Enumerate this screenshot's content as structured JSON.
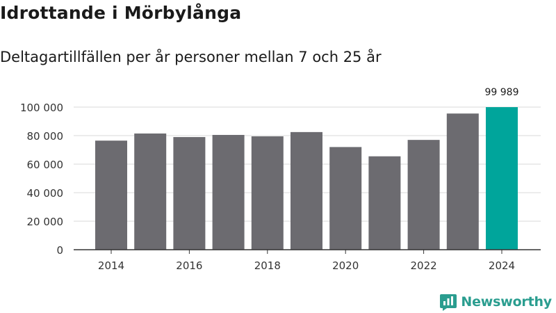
{
  "header": {
    "title": "Idrottande i Mörbylånga",
    "subtitle": "Deltagartillfällen per år personer mellan 7 och 25 år"
  },
  "brand": {
    "name": "Newsworthy"
  },
  "colors": {
    "bar": "#6c6b70",
    "highlight": "#00a59b",
    "grid": "#d9d9d9",
    "axis": "#333333",
    "brand": "#2a9d8f"
  },
  "chart_data": {
    "type": "bar",
    "x": [
      2014,
      2015,
      2016,
      2017,
      2018,
      2019,
      2020,
      2021,
      2022,
      2023,
      2024
    ],
    "values": [
      76500,
      81500,
      79000,
      80500,
      79500,
      82500,
      72000,
      65500,
      77000,
      95500,
      99989
    ],
    "highlight_index": 10,
    "data_labels": [
      {
        "index": 10,
        "text": "99 989"
      }
    ],
    "xticks": [
      "2014",
      "2016",
      "2018",
      "2020",
      "2022",
      "2024"
    ],
    "yticks": [
      {
        "value": 0,
        "label": "0"
      },
      {
        "value": 20000,
        "label": "20 000"
      },
      {
        "value": 40000,
        "label": "40 000"
      },
      {
        "value": 60000,
        "label": "60 000"
      },
      {
        "value": 80000,
        "label": "80 000"
      },
      {
        "value": 100000,
        "label": "100 000"
      }
    ],
    "ylim": [
      0,
      100000
    ],
    "grid": true,
    "legend": "none"
  }
}
